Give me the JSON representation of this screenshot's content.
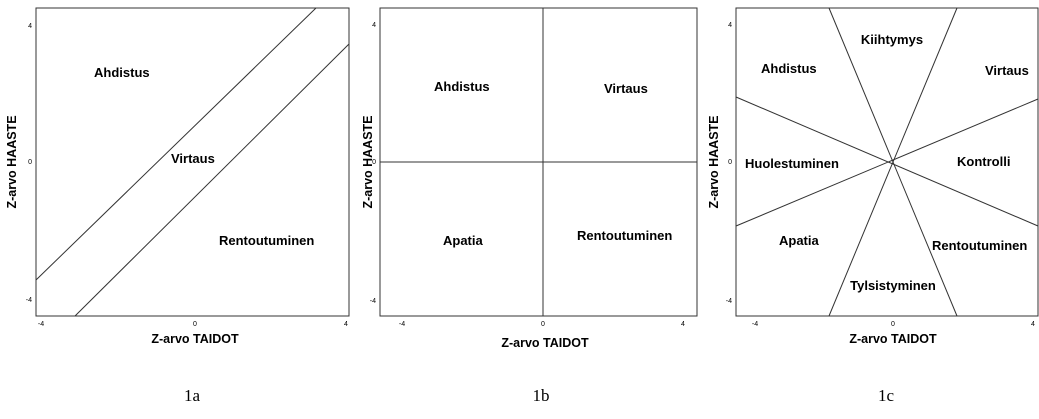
{
  "panels": [
    {
      "caption": "1a",
      "x_axis_label": "Z-arvo TAIDOT",
      "y_axis_label": "Z-arvo HAASTE",
      "x_ticks": [
        -4,
        0,
        4
      ],
      "y_ticks": [
        4,
        0,
        -4
      ],
      "regions": [
        "Ahdistus",
        "Virtaus",
        "Rentoutuminen"
      ]
    },
    {
      "caption": "1b",
      "x_axis_label": "Z-arvo TAIDOT",
      "y_axis_label": "Z-arvo HAASTE",
      "x_ticks": [
        -4,
        0,
        4
      ],
      "y_ticks": [
        4,
        0,
        -4
      ],
      "regions": [
        "Ahdistus",
        "Virtaus",
        "Apatia",
        "Rentoutuminen"
      ]
    },
    {
      "caption": "1c",
      "x_axis_label": "Z-arvo TAIDOT",
      "y_axis_label": "Z-arvo HAASTE",
      "x_ticks": [
        -4,
        0,
        4
      ],
      "y_ticks": [
        4,
        0,
        -4
      ],
      "regions": [
        "Kiihtymys",
        "Ahdistus",
        "Virtaus",
        "Huolestuminen",
        "Kontrolli",
        "Apatia",
        "Rentoutuminen",
        "Tylsistyminen"
      ]
    }
  ]
}
